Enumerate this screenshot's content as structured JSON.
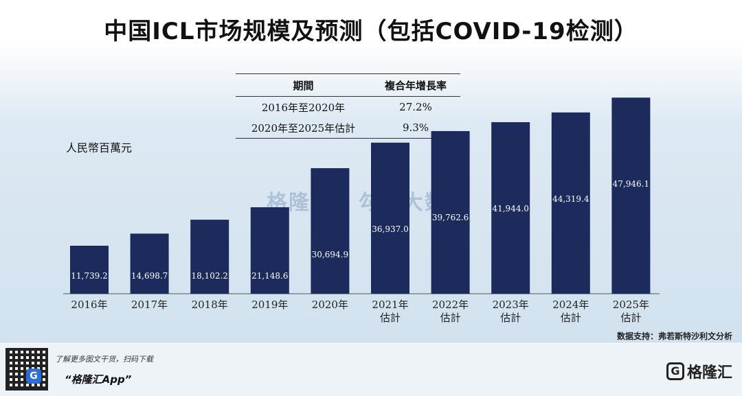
{
  "title": "中国ICL市场规模及预测（包括COVID-19检测）",
  "cagr_table": {
    "headers": [
      "期間",
      "複合年增長率"
    ],
    "rows": [
      {
        "period": "2016年至2020年",
        "rate": "27.2%"
      },
      {
        "period": "2020年至2025年估計",
        "rate": "9.3%"
      }
    ]
  },
  "unit_label": "人民幣百萬元",
  "chart_data": {
    "type": "bar",
    "title": "中国ICL市场规模及预测（包括COVID-19检测）",
    "ylabel": "人民幣百萬元",
    "categories": [
      "2016年",
      "2017年",
      "2018年",
      "2019年",
      "2020年",
      "2021年估計",
      "2022年估計",
      "2023年估計",
      "2024年估計",
      "2025年估計"
    ],
    "category_lines": [
      [
        "2016年"
      ],
      [
        "2017年"
      ],
      [
        "2018年"
      ],
      [
        "2019年"
      ],
      [
        "2020年"
      ],
      [
        "2021年",
        "估計"
      ],
      [
        "2022年",
        "估計"
      ],
      [
        "2023年",
        "估計"
      ],
      [
        "2024年",
        "估計"
      ],
      [
        "2025年",
        "估計"
      ]
    ],
    "values": [
      11739.2,
      14698.7,
      18102.2,
      21148.6,
      30694.9,
      36937.0,
      39762.6,
      41944.0,
      44319.4,
      47946.1
    ],
    "value_labels": [
      "11,739.2",
      "14,698.7",
      "18,102.2",
      "21,148.6",
      "30,694.9",
      "36,937.0",
      "39,762.6",
      "41,944.0",
      "44,319.4",
      "47,946.1"
    ],
    "ylim": [
      0,
      50000
    ],
    "grid": false,
    "bar_color": "#1d2a5c"
  },
  "watermark": "格隆汇 | 勾股大数据",
  "source": "数据支持：弗若斯特沙利文分析",
  "footer": {
    "hint": "了解更多图文干货，扫码下载",
    "app_name": "“格隆汇App”",
    "brand": "格隆汇",
    "qr_badge": "G"
  }
}
